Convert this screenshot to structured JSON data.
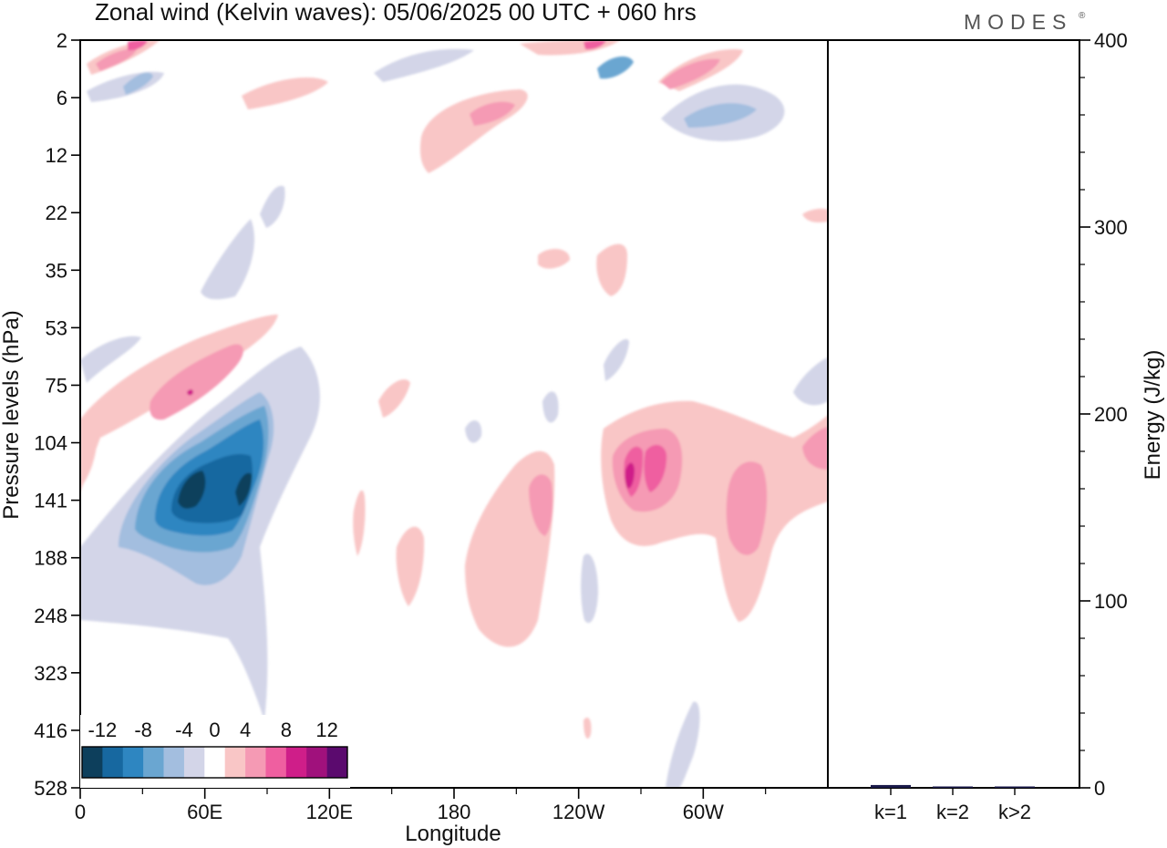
{
  "chart_data": [
    {
      "type": "heatmap",
      "title": "Zonal wind (Kelvin waves):  05/06/2025  00 UTC  + 060 hrs",
      "xlabel": "Longitude",
      "ylabel": "Pressure levels (hPa)",
      "x_ticks": [
        "0",
        "60E",
        "120E",
        "180",
        "120W",
        "60W"
      ],
      "y_ticks": [
        "2",
        "6",
        "12",
        "22",
        "35",
        "53",
        "75",
        "104",
        "141",
        "188",
        "248",
        "323",
        "416",
        "528"
      ],
      "xlim_deg_east": [
        0,
        360
      ],
      "colorbar": {
        "labels": [
          "-12",
          "-8",
          "-4",
          "0",
          "4",
          "8",
          "12"
        ],
        "bounds": [
          -14,
          -12,
          -10,
          -8,
          -6,
          -4,
          -2,
          2,
          4,
          6,
          8,
          10,
          12,
          14
        ],
        "colors": [
          "#0d3f5c",
          "#1768a0",
          "#2e86c1",
          "#6aa6d1",
          "#a3bedf",
          "#d3d5e8",
          "#ffffff",
          "#f9c6c6",
          "#f59ab4",
          "#ef5fa0",
          "#cf1e89",
          "#a0117c",
          "#5b0a6e"
        ]
      },
      "features": [
        {
          "value": -12,
          "lon": 50,
          "level": 141
        },
        {
          "value": 8,
          "lon": 255,
          "level": 130
        },
        {
          "value": 6,
          "lon": 40,
          "level": 80
        },
        {
          "value": 6,
          "lon": 195,
          "level": 5
        },
        {
          "value": -4,
          "lon": 310,
          "level": 5
        }
      ]
    },
    {
      "type": "bar",
      "ylabel": "Energy (J/kg)",
      "ylim": [
        0,
        400
      ],
      "y_ticks": [
        "0",
        "100",
        "200",
        "300",
        "400"
      ],
      "categories": [
        "k=1",
        "k=2",
        "k>2"
      ],
      "values": [
        1.5,
        0.3,
        0.5
      ],
      "color": "#1a1a4a"
    }
  ],
  "branding": {
    "logo": "MODES"
  }
}
